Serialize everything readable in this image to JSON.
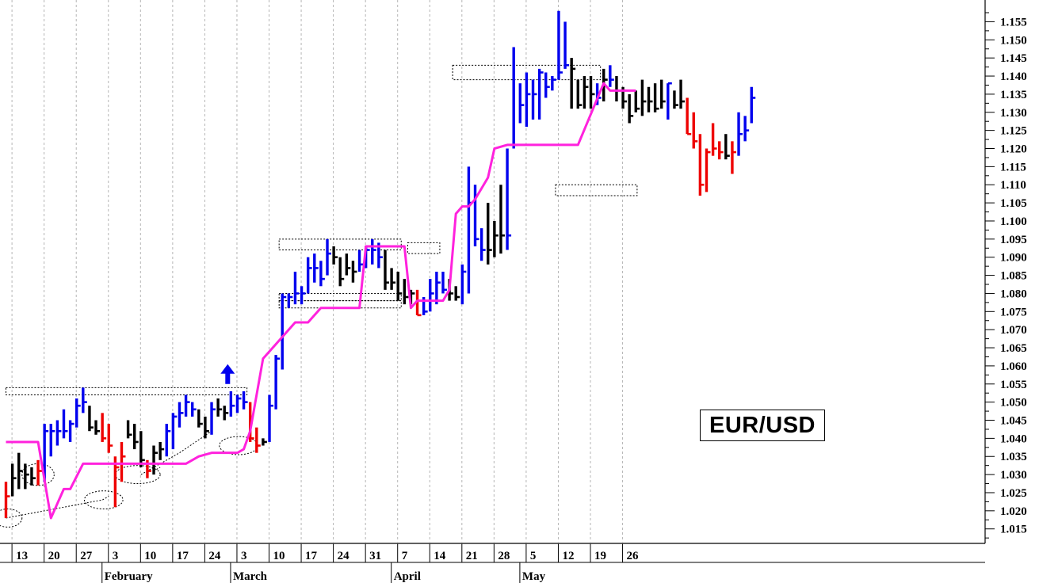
{
  "chart_data": {
    "type": "ohlc",
    "title": "EUR/USD",
    "ylim": [
      1.011,
      1.161
    ],
    "y_ticks": [
      "1.015",
      "1.020",
      "1.025",
      "1.030",
      "1.035",
      "1.040",
      "1.045",
      "1.050",
      "1.055",
      "1.060",
      "1.065",
      "1.070",
      "1.075",
      "1.080",
      "1.085",
      "1.090",
      "1.095",
      "1.100",
      "1.105",
      "1.110",
      "1.115",
      "1.120",
      "1.125",
      "1.130",
      "1.135",
      "1.140",
      "1.145",
      "1.150",
      "1.155"
    ],
    "x_day_ticks": [
      "13",
      "20",
      "27",
      "3",
      "10",
      "17",
      "24",
      "3",
      "10",
      "17",
      "24",
      "31",
      "7",
      "14",
      "21",
      "28",
      "5",
      "12",
      "19",
      "26"
    ],
    "x_month_labels": [
      "February",
      "March",
      "April",
      "May"
    ],
    "grid": true,
    "colors": {
      "up": "#0000ee",
      "down": "#ee0000",
      "neutral": "#000000",
      "stop_line": "#ff22dd"
    },
    "bars": [
      {
        "h": 1.028,
        "l": 1.018,
        "c": 1.024,
        "col": "down"
      },
      {
        "h": 1.033,
        "l": 1.024,
        "c": 1.029,
        "col": "neutral"
      },
      {
        "h": 1.036,
        "l": 1.026,
        "c": 1.031,
        "col": "neutral"
      },
      {
        "h": 1.033,
        "l": 1.026,
        "c": 1.03,
        "col": "neutral"
      },
      {
        "h": 1.032,
        "l": 1.027,
        "c": 1.029,
        "col": "neutral"
      },
      {
        "h": 1.034,
        "l": 1.027,
        "c": 1.031,
        "col": "down"
      },
      {
        "h": 1.044,
        "l": 1.028,
        "c": 1.042,
        "col": "up"
      },
      {
        "h": 1.044,
        "l": 1.035,
        "c": 1.042,
        "col": "up"
      },
      {
        "h": 1.045,
        "l": 1.038,
        "c": 1.042,
        "col": "up"
      },
      {
        "h": 1.048,
        "l": 1.04,
        "c": 1.042,
        "col": "up"
      },
      {
        "h": 1.045,
        "l": 1.039,
        "c": 1.044,
        "col": "up"
      },
      {
        "h": 1.051,
        "l": 1.043,
        "c": 1.049,
        "col": "up"
      },
      {
        "h": 1.054,
        "l": 1.047,
        "c": 1.05,
        "col": "up"
      },
      {
        "h": 1.049,
        "l": 1.042,
        "c": 1.043,
        "col": "neutral"
      },
      {
        "h": 1.045,
        "l": 1.041,
        "c": 1.042,
        "col": "neutral"
      },
      {
        "h": 1.047,
        "l": 1.039,
        "c": 1.04,
        "col": "down"
      },
      {
        "h": 1.044,
        "l": 1.036,
        "c": 1.038,
        "col": "down"
      },
      {
        "h": 1.035,
        "l": 1.021,
        "c": 1.032,
        "col": "down"
      },
      {
        "h": 1.039,
        "l": 1.028,
        "c": 1.035,
        "col": "down"
      },
      {
        "h": 1.045,
        "l": 1.04,
        "c": 1.041,
        "col": "neutral"
      },
      {
        "h": 1.044,
        "l": 1.037,
        "c": 1.039,
        "col": "neutral"
      },
      {
        "h": 1.042,
        "l": 1.032,
        "c": 1.034,
        "col": "neutral"
      },
      {
        "h": 1.034,
        "l": 1.029,
        "c": 1.031,
        "col": "down"
      },
      {
        "h": 1.038,
        "l": 1.03,
        "c": 1.036,
        "col": "neutral"
      },
      {
        "h": 1.039,
        "l": 1.034,
        "c": 1.037,
        "col": "neutral"
      },
      {
        "h": 1.044,
        "l": 1.035,
        "c": 1.042,
        "col": "up"
      },
      {
        "h": 1.047,
        "l": 1.037,
        "c": 1.046,
        "col": "up"
      },
      {
        "h": 1.05,
        "l": 1.043,
        "c": 1.047,
        "col": "up"
      },
      {
        "h": 1.052,
        "l": 1.046,
        "c": 1.05,
        "col": "up"
      },
      {
        "h": 1.05,
        "l": 1.046,
        "c": 1.048,
        "col": "up"
      },
      {
        "h": 1.048,
        "l": 1.043,
        "c": 1.044,
        "col": "neutral"
      },
      {
        "h": 1.046,
        "l": 1.04,
        "c": 1.042,
        "col": "neutral"
      },
      {
        "h": 1.05,
        "l": 1.041,
        "c": 1.048,
        "col": "up"
      },
      {
        "h": 1.051,
        "l": 1.046,
        "c": 1.048,
        "col": "neutral"
      },
      {
        "h": 1.049,
        "l": 1.045,
        "c": 1.047,
        "col": "neutral"
      },
      {
        "h": 1.053,
        "l": 1.046,
        "c": 1.049,
        "col": "up"
      },
      {
        "h": 1.052,
        "l": 1.047,
        "c": 1.051,
        "col": "up"
      },
      {
        "h": 1.053,
        "l": 1.048,
        "c": 1.05,
        "col": "up"
      },
      {
        "h": 1.05,
        "l": 1.039,
        "c": 1.04,
        "col": "down"
      },
      {
        "h": 1.043,
        "l": 1.036,
        "c": 1.038,
        "col": "down"
      },
      {
        "h": 1.04,
        "l": 1.038,
        "c": 1.039,
        "col": "neutral"
      },
      {
        "h": 1.052,
        "l": 1.039,
        "c": 1.049,
        "col": "up"
      },
      {
        "h": 1.063,
        "l": 1.048,
        "c": 1.062,
        "col": "up"
      },
      {
        "h": 1.08,
        "l": 1.059,
        "c": 1.079,
        "col": "up"
      },
      {
        "h": 1.08,
        "l": 1.076,
        "c": 1.079,
        "col": "up"
      },
      {
        "h": 1.086,
        "l": 1.077,
        "c": 1.08,
        "col": "up"
      },
      {
        "h": 1.082,
        "l": 1.077,
        "c": 1.08,
        "col": "up"
      },
      {
        "h": 1.09,
        "l": 1.08,
        "c": 1.087,
        "col": "up"
      },
      {
        "h": 1.091,
        "l": 1.083,
        "c": 1.087,
        "col": "up"
      },
      {
        "h": 1.089,
        "l": 1.082,
        "c": 1.084,
        "col": "up"
      },
      {
        "h": 1.095,
        "l": 1.085,
        "c": 1.091,
        "col": "up"
      },
      {
        "h": 1.093,
        "l": 1.088,
        "c": 1.09,
        "col": "neutral"
      },
      {
        "h": 1.09,
        "l": 1.082,
        "c": 1.084,
        "col": "neutral"
      },
      {
        "h": 1.091,
        "l": 1.085,
        "c": 1.087,
        "col": "neutral"
      },
      {
        "h": 1.089,
        "l": 1.083,
        "c": 1.086,
        "col": "neutral"
      },
      {
        "h": 1.092,
        "l": 1.086,
        "c": 1.088,
        "col": "up"
      },
      {
        "h": 1.093,
        "l": 1.087,
        "c": 1.092,
        "col": "up"
      },
      {
        "h": 1.095,
        "l": 1.088,
        "c": 1.092,
        "col": "up"
      },
      {
        "h": 1.094,
        "l": 1.087,
        "c": 1.09,
        "col": "up"
      },
      {
        "h": 1.092,
        "l": 1.081,
        "c": 1.083,
        "col": "neutral"
      },
      {
        "h": 1.087,
        "l": 1.081,
        "c": 1.083,
        "col": "neutral"
      },
      {
        "h": 1.086,
        "l": 1.078,
        "c": 1.08,
        "col": "neutral"
      },
      {
        "h": 1.084,
        "l": 1.077,
        "c": 1.079,
        "col": "neutral"
      },
      {
        "h": 1.081,
        "l": 1.077,
        "c": 1.08,
        "col": "neutral"
      },
      {
        "h": 1.081,
        "l": 1.074,
        "c": 1.074,
        "col": "down"
      },
      {
        "h": 1.079,
        "l": 1.074,
        "c": 1.075,
        "col": "up"
      },
      {
        "h": 1.084,
        "l": 1.075,
        "c": 1.08,
        "col": "up"
      },
      {
        "h": 1.086,
        "l": 1.077,
        "c": 1.083,
        "col": "up"
      },
      {
        "h": 1.086,
        "l": 1.08,
        "c": 1.081,
        "col": "up"
      },
      {
        "h": 1.084,
        "l": 1.078,
        "c": 1.08,
        "col": "neutral"
      },
      {
        "h": 1.082,
        "l": 1.078,
        "c": 1.079,
        "col": "neutral"
      },
      {
        "h": 1.088,
        "l": 1.077,
        "c": 1.086,
        "col": "up"
      },
      {
        "h": 1.115,
        "l": 1.08,
        "c": 1.105,
        "col": "up"
      },
      {
        "h": 1.11,
        "l": 1.093,
        "c": 1.095,
        "col": "up"
      },
      {
        "h": 1.098,
        "l": 1.089,
        "c": 1.092,
        "col": "up"
      },
      {
        "h": 1.105,
        "l": 1.088,
        "c": 1.092,
        "col": "neutral"
      },
      {
        "h": 1.1,
        "l": 1.09,
        "c": 1.096,
        "col": "neutral"
      },
      {
        "h": 1.11,
        "l": 1.091,
        "c": 1.096,
        "col": "neutral"
      },
      {
        "h": 1.12,
        "l": 1.092,
        "c": 1.096,
        "col": "up"
      },
      {
        "h": 1.148,
        "l": 1.12,
        "c": 1.121,
        "col": "up"
      },
      {
        "h": 1.138,
        "l": 1.127,
        "c": 1.132,
        "col": "up"
      },
      {
        "h": 1.141,
        "l": 1.126,
        "c": 1.135,
        "col": "up"
      },
      {
        "h": 1.139,
        "l": 1.128,
        "c": 1.135,
        "col": "up"
      },
      {
        "h": 1.142,
        "l": 1.128,
        "c": 1.141,
        "col": "up"
      },
      {
        "h": 1.141,
        "l": 1.134,
        "c": 1.137,
        "col": "up"
      },
      {
        "h": 1.14,
        "l": 1.136,
        "c": 1.139,
        "col": "up"
      },
      {
        "h": 1.158,
        "l": 1.139,
        "c": 1.141,
        "col": "up"
      },
      {
        "h": 1.155,
        "l": 1.142,
        "c": 1.143,
        "col": "up"
      },
      {
        "h": 1.145,
        "l": 1.131,
        "c": 1.142,
        "col": "neutral"
      },
      {
        "h": 1.139,
        "l": 1.131,
        "c": 1.132,
        "col": "neutral"
      },
      {
        "h": 1.14,
        "l": 1.131,
        "c": 1.137,
        "col": "neutral"
      },
      {
        "h": 1.14,
        "l": 1.131,
        "c": 1.135,
        "col": "neutral"
      },
      {
        "h": 1.138,
        "l": 1.132,
        "c": 1.134,
        "col": "up"
      },
      {
        "h": 1.142,
        "l": 1.133,
        "c": 1.139,
        "col": "neutral"
      },
      {
        "h": 1.143,
        "l": 1.137,
        "c": 1.139,
        "col": "up"
      },
      {
        "h": 1.14,
        "l": 1.133,
        "c": 1.136,
        "col": "neutral"
      },
      {
        "h": 1.137,
        "l": 1.131,
        "c": 1.133,
        "col": "neutral"
      },
      {
        "h": 1.135,
        "l": 1.127,
        "c": 1.129,
        "col": "neutral"
      },
      {
        "h": 1.136,
        "l": 1.13,
        "c": 1.131,
        "col": "neutral"
      },
      {
        "h": 1.139,
        "l": 1.129,
        "c": 1.133,
        "col": "neutral"
      },
      {
        "h": 1.137,
        "l": 1.13,
        "c": 1.133,
        "col": "neutral"
      },
      {
        "h": 1.138,
        "l": 1.13,
        "c": 1.131,
        "col": "neutral"
      },
      {
        "h": 1.139,
        "l": 1.131,
        "c": 1.133,
        "col": "neutral"
      },
      {
        "h": 1.138,
        "l": 1.128,
        "c": 1.138,
        "col": "up"
      },
      {
        "h": 1.136,
        "l": 1.131,
        "c": 1.132,
        "col": "neutral"
      },
      {
        "h": 1.139,
        "l": 1.131,
        "c": 1.133,
        "col": "neutral"
      },
      {
        "h": 1.134,
        "l": 1.124,
        "c": 1.124,
        "col": "down"
      },
      {
        "h": 1.13,
        "l": 1.12,
        "c": 1.122,
        "col": "down"
      },
      {
        "h": 1.124,
        "l": 1.107,
        "c": 1.11,
        "col": "down"
      },
      {
        "h": 1.12,
        "l": 1.108,
        "c": 1.119,
        "col": "down"
      },
      {
        "h": 1.127,
        "l": 1.118,
        "c": 1.12,
        "col": "down"
      },
      {
        "h": 1.122,
        "l": 1.117,
        "c": 1.119,
        "col": "down"
      },
      {
        "h": 1.124,
        "l": 1.117,
        "c": 1.118,
        "col": "neutral"
      },
      {
        "h": 1.122,
        "l": 1.113,
        "c": 1.119,
        "col": "down"
      },
      {
        "h": 1.13,
        "l": 1.118,
        "c": 1.124,
        "col": "up"
      },
      {
        "h": 1.129,
        "l": 1.122,
        "c": 1.125,
        "col": "up"
      },
      {
        "h": 1.137,
        "l": 1.127,
        "c": 1.134,
        "col": "up"
      }
    ],
    "stop_line": [
      [
        0,
        1.039
      ],
      [
        5,
        1.039
      ],
      [
        7,
        1.018
      ],
      [
        9,
        1.026
      ],
      [
        10,
        1.026
      ],
      [
        12,
        1.033
      ],
      [
        24,
        1.033
      ],
      [
        28,
        1.033
      ],
      [
        30,
        1.035
      ],
      [
        32,
        1.036
      ],
      [
        36,
        1.036
      ],
      [
        37,
        1.037
      ],
      [
        38,
        1.042
      ],
      [
        40,
        1.062
      ],
      [
        41,
        1.064
      ],
      [
        43,
        1.068
      ],
      [
        45,
        1.072
      ],
      [
        47,
        1.072
      ],
      [
        49,
        1.076
      ],
      [
        52,
        1.076
      ],
      [
        55,
        1.076
      ],
      [
        56,
        1.093
      ],
      [
        62,
        1.093
      ],
      [
        63,
        1.076
      ],
      [
        64,
        1.078
      ],
      [
        68,
        1.078
      ],
      [
        69,
        1.081
      ],
      [
        70,
        1.102
      ],
      [
        71,
        1.104
      ],
      [
        72,
        1.104
      ],
      [
        73,
        1.106
      ],
      [
        75,
        1.112
      ],
      [
        76,
        1.12
      ],
      [
        78,
        1.121
      ],
      [
        89,
        1.121
      ],
      [
        93,
        1.138
      ],
      [
        94,
        1.136
      ],
      [
        98,
        1.136
      ]
    ],
    "boxes": [
      {
        "x0": 0,
        "x1": 37.5,
        "y0": 1.052,
        "y1": 1.054
      },
      {
        "x0": 42.5,
        "x1": 61.5,
        "y0": 1.092,
        "y1": 1.095
      },
      {
        "x0": 42.5,
        "x1": 61.5,
        "y0": 1.078,
        "y1": 1.08
      },
      {
        "x0": 42.5,
        "x1": 61.5,
        "y0": 1.076,
        "y1": 1.078
      },
      {
        "x0": 62.5,
        "x1": 67.5,
        "y0": 1.091,
        "y1": 1.094
      },
      {
        "x0": 69.5,
        "x1": 92.5,
        "y0": 1.139,
        "y1": 1.143
      },
      {
        "x0": 85.5,
        "x1": 98.2,
        "y0": 1.107,
        "y1": 1.11
      }
    ],
    "ellipses": [
      {
        "cx": 0.3,
        "cy": 1.018,
        "rx": 2.2,
        "ry": 0.0025
      },
      {
        "cx": 5,
        "cy": 1.03,
        "rx": 2.5,
        "ry": 0.003
      },
      {
        "cx": 15.2,
        "cy": 1.023,
        "rx": 3,
        "ry": 0.0025
      },
      {
        "cx": 20.5,
        "cy": 1.03,
        "rx": 3.5,
        "ry": 0.0025
      },
      {
        "cx": 36.2,
        "cy": 1.038,
        "rx": 3,
        "ry": 0.0025
      }
    ],
    "trendlines": [
      [
        [
          0,
          1.018
        ],
        [
          15,
          1.023
        ],
        [
          16,
          1.024
        ]
      ],
      [
        [
          21,
          1.03
        ],
        [
          27,
          1.036
        ],
        [
          32,
          1.042
        ]
      ],
      [
        [
          23,
          1.031
        ],
        [
          24,
          1.032
        ]
      ]
    ],
    "arrow": {
      "x": 34.5,
      "y": 1.055
    }
  }
}
